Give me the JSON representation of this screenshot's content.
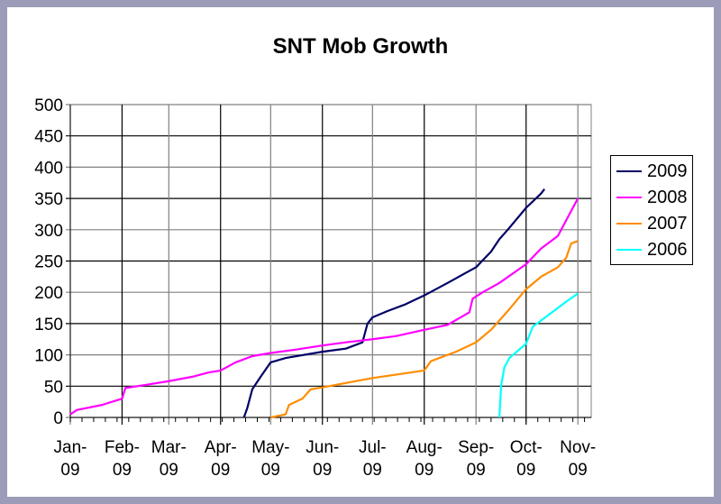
{
  "chart_data": {
    "type": "line",
    "title": "SNT Mob Growth",
    "xlabel": "",
    "ylabel": "",
    "ylim": [
      0,
      500
    ],
    "yticks": [
      0,
      50,
      100,
      150,
      200,
      250,
      300,
      350,
      400,
      450,
      500
    ],
    "xlim": [
      "2009-01-01",
      "2009-11-09"
    ],
    "xticks": [
      {
        "date": "2009-01-01",
        "label": [
          "Jan-",
          "09"
        ]
      },
      {
        "date": "2009-02-01",
        "label": [
          "Feb-",
          "09"
        ]
      },
      {
        "date": "2009-03-01",
        "label": [
          "Mar-",
          "09"
        ]
      },
      {
        "date": "2009-04-01",
        "label": [
          "Apr-",
          "09"
        ]
      },
      {
        "date": "2009-05-01",
        "label": [
          "May-",
          "09"
        ]
      },
      {
        "date": "2009-06-01",
        "label": [
          "Jun-",
          "09"
        ]
      },
      {
        "date": "2009-07-01",
        "label": [
          "Jul-",
          "09"
        ]
      },
      {
        "date": "2009-08-01",
        "label": [
          "Aug-",
          "09"
        ]
      },
      {
        "date": "2009-09-01",
        "label": [
          "Sep-",
          "09"
        ]
      },
      {
        "date": "2009-10-01",
        "label": [
          "Oct-",
          "09"
        ]
      },
      {
        "date": "2009-11-01",
        "label": [
          "Nov-",
          "09"
        ]
      }
    ],
    "grid": true,
    "legend": "right",
    "series": [
      {
        "name": "2009",
        "color": "#000066",
        "points": [
          [
            "2009-04-15",
            0
          ],
          [
            "2009-04-17",
            15
          ],
          [
            "2009-04-20",
            45
          ],
          [
            "2009-04-25",
            65
          ],
          [
            "2009-05-01",
            88
          ],
          [
            "2009-05-10",
            95
          ],
          [
            "2009-06-01",
            105
          ],
          [
            "2009-06-15",
            110
          ],
          [
            "2009-06-25",
            120
          ],
          [
            "2009-06-28",
            150
          ],
          [
            "2009-07-01",
            160
          ],
          [
            "2009-07-10",
            170
          ],
          [
            "2009-07-20",
            180
          ],
          [
            "2009-08-01",
            195
          ],
          [
            "2009-08-15",
            215
          ],
          [
            "2009-09-01",
            240
          ],
          [
            "2009-09-10",
            265
          ],
          [
            "2009-09-15",
            285
          ],
          [
            "2009-09-20",
            300
          ],
          [
            "2009-10-01",
            335
          ],
          [
            "2009-10-10",
            358
          ],
          [
            "2009-10-12",
            365
          ]
        ]
      },
      {
        "name": "2008",
        "color": "#ff00ff",
        "points": [
          [
            "2009-01-01",
            5
          ],
          [
            "2009-01-05",
            12
          ],
          [
            "2009-01-20",
            20
          ],
          [
            "2009-02-01",
            30
          ],
          [
            "2009-02-03",
            47
          ],
          [
            "2009-02-15",
            52
          ],
          [
            "2009-03-01",
            58
          ],
          [
            "2009-03-15",
            65
          ],
          [
            "2009-03-25",
            72
          ],
          [
            "2009-04-01",
            75
          ],
          [
            "2009-04-10",
            88
          ],
          [
            "2009-04-20",
            98
          ],
          [
            "2009-05-01",
            103
          ],
          [
            "2009-05-15",
            108
          ],
          [
            "2009-06-01",
            115
          ],
          [
            "2009-06-15",
            120
          ],
          [
            "2009-07-01",
            125
          ],
          [
            "2009-07-15",
            130
          ],
          [
            "2009-08-01",
            140
          ],
          [
            "2009-08-15",
            148
          ],
          [
            "2009-08-28",
            168
          ],
          [
            "2009-08-30",
            190
          ],
          [
            "2009-09-05",
            200
          ],
          [
            "2009-09-15",
            215
          ],
          [
            "2009-10-01",
            245
          ],
          [
            "2009-10-10",
            270
          ],
          [
            "2009-10-20",
            290
          ],
          [
            "2009-11-01",
            350
          ]
        ]
      },
      {
        "name": "2007",
        "color": "#ff8c00",
        "points": [
          [
            "2009-05-01",
            0
          ],
          [
            "2009-05-10",
            5
          ],
          [
            "2009-05-12",
            20
          ],
          [
            "2009-05-20",
            30
          ],
          [
            "2009-05-25",
            45
          ],
          [
            "2009-06-01",
            48
          ],
          [
            "2009-06-15",
            55
          ],
          [
            "2009-07-01",
            63
          ],
          [
            "2009-08-01",
            75
          ],
          [
            "2009-08-05",
            90
          ],
          [
            "2009-08-20",
            105
          ],
          [
            "2009-09-01",
            120
          ],
          [
            "2009-09-10",
            140
          ],
          [
            "2009-09-20",
            170
          ],
          [
            "2009-10-01",
            205
          ],
          [
            "2009-10-10",
            225
          ],
          [
            "2009-10-20",
            240
          ],
          [
            "2009-10-25",
            255
          ],
          [
            "2009-10-28",
            278
          ],
          [
            "2009-11-01",
            282
          ]
        ]
      },
      {
        "name": "2006",
        "color": "#00ffff",
        "points": [
          [
            "2009-09-15",
            0
          ],
          [
            "2009-09-16",
            50
          ],
          [
            "2009-09-18",
            80
          ],
          [
            "2009-09-21",
            95
          ],
          [
            "2009-10-01",
            118
          ],
          [
            "2009-10-05",
            145
          ],
          [
            "2009-10-15",
            165
          ],
          [
            "2009-10-25",
            185
          ],
          [
            "2009-11-01",
            198
          ]
        ]
      }
    ]
  }
}
